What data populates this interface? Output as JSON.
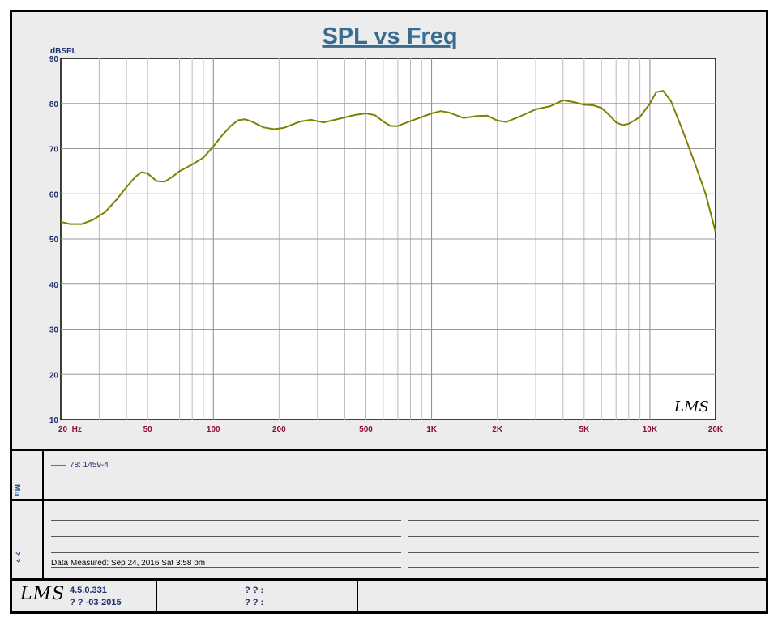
{
  "chart_data": {
    "type": "line",
    "title": "SPL vs Freq",
    "ylabel": "dBSPL",
    "xlabel": "",
    "x_scale": "log",
    "xlim": [
      20,
      20000
    ],
    "ylim": [
      10,
      90
    ],
    "grid": true,
    "y_ticks": [
      10,
      20,
      30,
      40,
      50,
      60,
      70,
      80,
      90
    ],
    "x_ticks": [
      {
        "value": 20,
        "label": "20  Hz"
      },
      {
        "value": 50,
        "label": "50"
      },
      {
        "value": 100,
        "label": "100"
      },
      {
        "value": 200,
        "label": "200"
      },
      {
        "value": 500,
        "label": "500"
      },
      {
        "value": 1000,
        "label": "1K"
      },
      {
        "value": 2000,
        "label": "2K"
      },
      {
        "value": 5000,
        "label": "5K"
      },
      {
        "value": 10000,
        "label": "10K"
      },
      {
        "value": 20000,
        "label": "20K"
      }
    ],
    "series": [
      {
        "name": "78:  1459-4",
        "color": "#7f7f00",
        "x": [
          20,
          22,
          25,
          28,
          32,
          36,
          40,
          44,
          47,
          50,
          55,
          60,
          65,
          70,
          80,
          90,
          100,
          110,
          120,
          130,
          140,
          150,
          170,
          190,
          210,
          250,
          280,
          320,
          400,
          450,
          500,
          550,
          600,
          650,
          700,
          800,
          900,
          1000,
          1100,
          1200,
          1400,
          1600,
          1800,
          2000,
          2200,
          2500,
          3000,
          3500,
          4000,
          4500,
          5000,
          5500,
          6000,
          6500,
          7000,
          7500,
          8000,
          9000,
          10000,
          10700,
          11500,
          12500,
          14000,
          16000,
          18000,
          20000
        ],
        "y": [
          53.8,
          53.3,
          53.3,
          54.2,
          56.0,
          58.7,
          61.5,
          63.8,
          64.8,
          64.5,
          62.8,
          62.7,
          63.8,
          65.0,
          66.5,
          68.0,
          70.5,
          73.0,
          75.0,
          76.3,
          76.5,
          76.0,
          74.7,
          74.3,
          74.6,
          76.0,
          76.4,
          75.8,
          76.9,
          77.5,
          77.8,
          77.4,
          76.0,
          75.0,
          75.0,
          76.1,
          77.0,
          77.8,
          78.3,
          78.0,
          76.8,
          77.2,
          77.3,
          76.2,
          75.9,
          77.0,
          78.7,
          79.4,
          80.7,
          80.3,
          79.7,
          79.6,
          79.0,
          77.5,
          75.8,
          75.2,
          75.5,
          77.0,
          80.0,
          82.5,
          82.8,
          80.5,
          74.5,
          67.0,
          60.0,
          51.5
        ]
      }
    ]
  },
  "legend": {
    "entry": "78:  1459-4"
  },
  "side_labels": {
    "legend_panel": "Mu",
    "notes_panel": "? ?"
  },
  "notes": {
    "data_measured": "Data Measured: Sep 24, 2016  Sat  3:58 pm"
  },
  "footer": {
    "version": "4.5.0.331",
    "date": "? ?  -03-2015",
    "field1": "? ? :",
    "field2": "? ? :"
  }
}
